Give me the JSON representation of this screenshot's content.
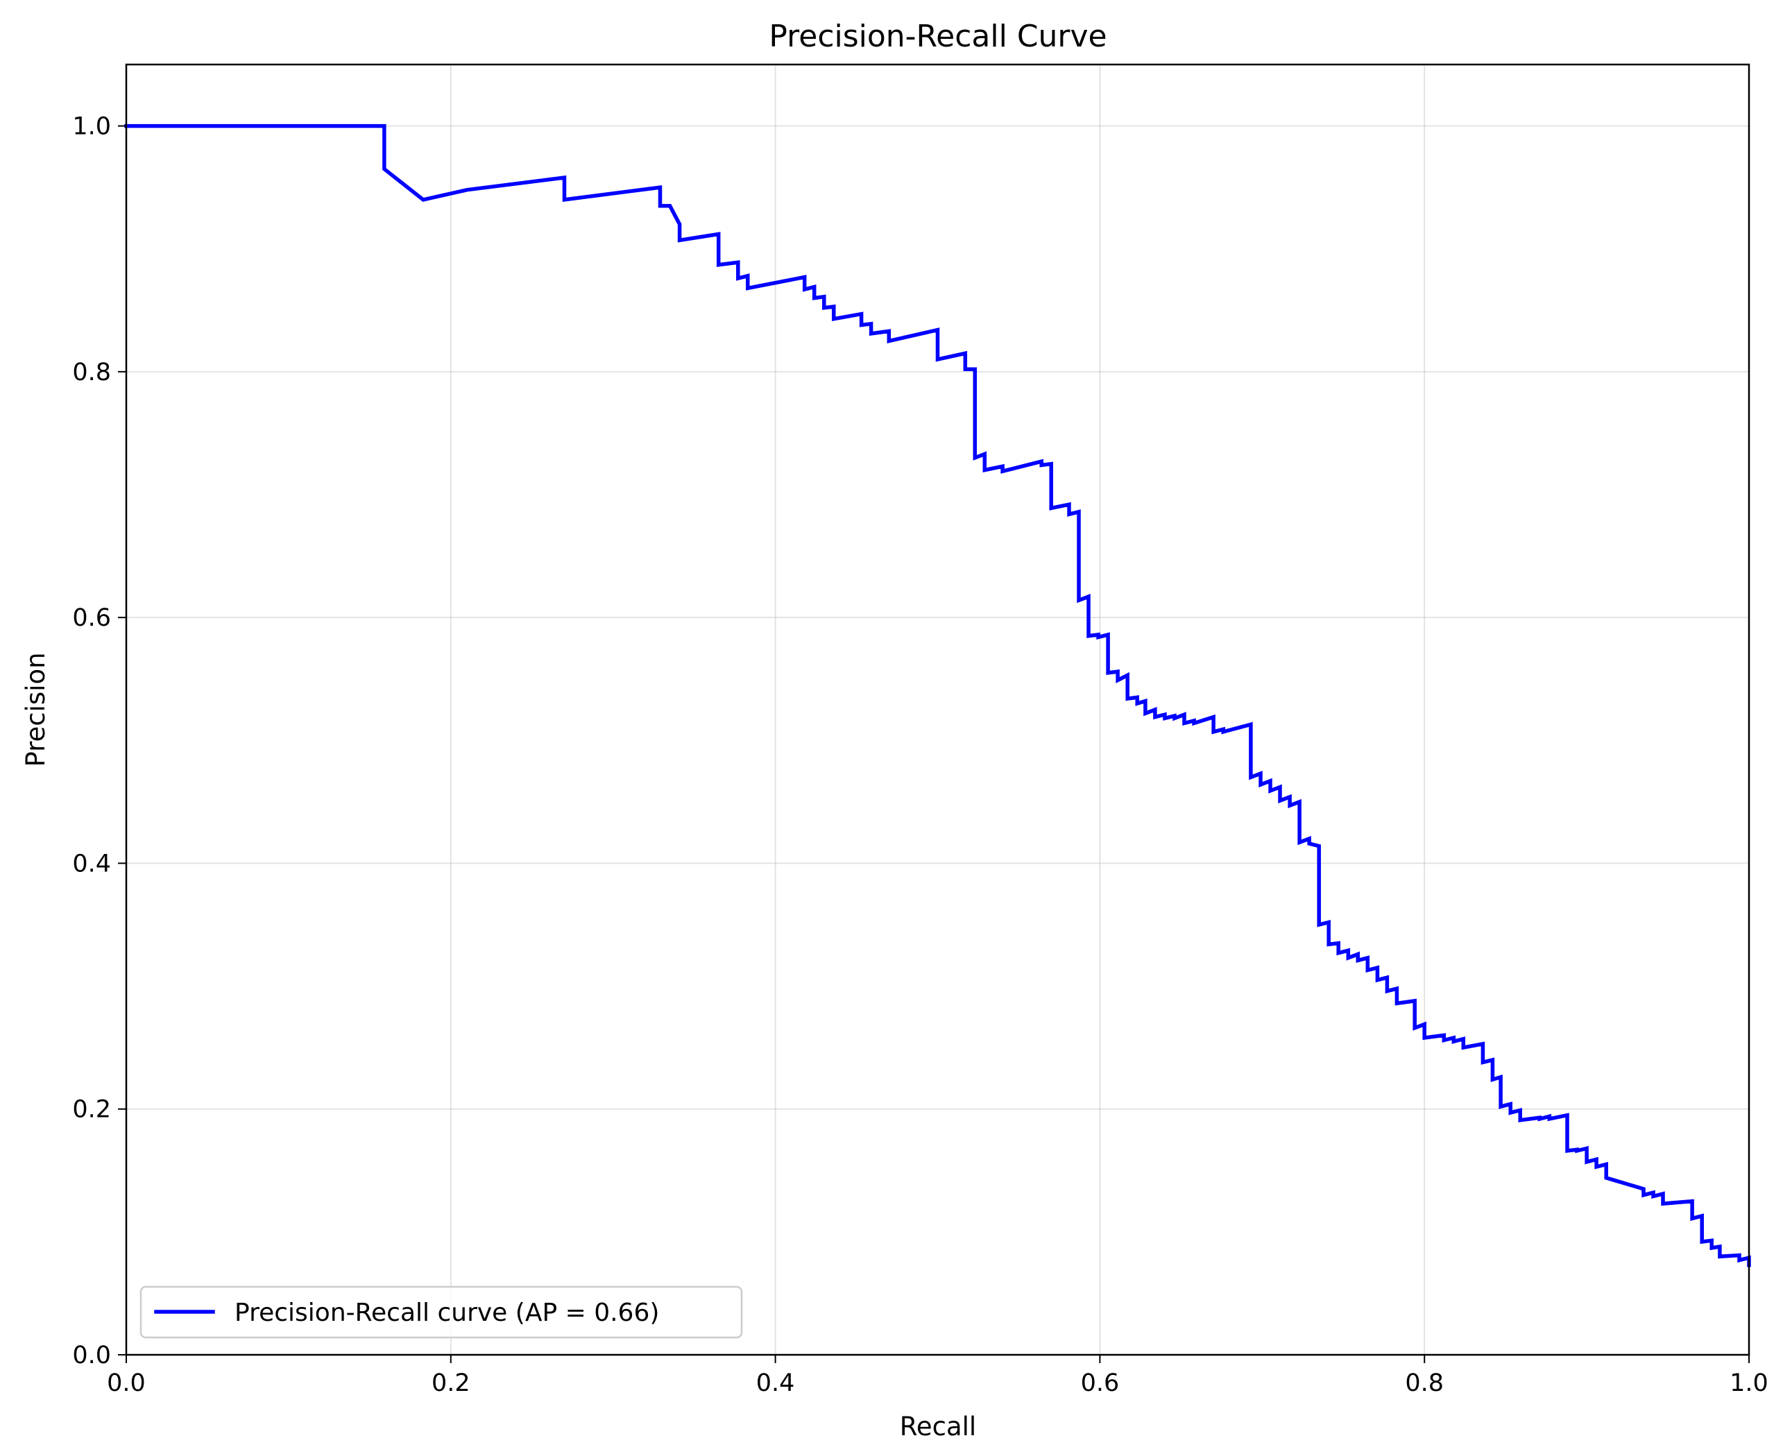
{
  "chart_data": {
    "type": "line",
    "title": "Precision-Recall Curve",
    "xlabel": "Recall",
    "ylabel": "Precision",
    "xlim": [
      0.0,
      1.0
    ],
    "ylim": [
      0.0,
      1.05
    ],
    "xticks": [
      0.0,
      0.2,
      0.4,
      0.6,
      0.8,
      1.0
    ],
    "yticks": [
      0.0,
      0.2,
      0.4,
      0.6,
      0.8,
      1.0
    ],
    "xtick_labels": [
      "0.0",
      "0.2",
      "0.4",
      "0.6",
      "0.8",
      "1.0"
    ],
    "ytick_labels": [
      "0.0",
      "0.2",
      "0.4",
      "0.6",
      "0.8",
      "1.0"
    ],
    "grid": true,
    "legend": {
      "placement": "lower-left"
    },
    "series": [
      {
        "name": "Precision-Recall curve (AP = 0.66)",
        "color": "#0000ff",
        "points": [
          [
            0.0,
            1.0
          ],
          [
            0.159,
            1.0
          ],
          [
            0.159,
            0.965
          ],
          [
            0.183,
            0.94
          ],
          [
            0.21,
            0.948
          ],
          [
            0.27,
            0.958
          ],
          [
            0.27,
            0.94
          ],
          [
            0.329,
            0.95
          ],
          [
            0.329,
            0.935
          ],
          [
            0.335,
            0.935
          ],
          [
            0.341,
            0.92
          ],
          [
            0.341,
            0.907
          ],
          [
            0.365,
            0.912
          ],
          [
            0.365,
            0.887
          ],
          [
            0.377,
            0.889
          ],
          [
            0.377,
            0.876
          ],
          [
            0.383,
            0.878
          ],
          [
            0.383,
            0.868
          ],
          [
            0.418,
            0.877
          ],
          [
            0.418,
            0.867
          ],
          [
            0.424,
            0.869
          ],
          [
            0.424,
            0.86
          ],
          [
            0.43,
            0.861
          ],
          [
            0.43,
            0.852
          ],
          [
            0.436,
            0.853
          ],
          [
            0.436,
            0.843
          ],
          [
            0.453,
            0.847
          ],
          [
            0.453,
            0.838
          ],
          [
            0.459,
            0.839
          ],
          [
            0.459,
            0.831
          ],
          [
            0.47,
            0.833
          ],
          [
            0.47,
            0.825
          ],
          [
            0.5,
            0.834
          ],
          [
            0.5,
            0.81
          ],
          [
            0.517,
            0.815
          ],
          [
            0.517,
            0.802
          ],
          [
            0.523,
            0.802
          ],
          [
            0.523,
            0.73
          ],
          [
            0.529,
            0.733
          ],
          [
            0.529,
            0.72
          ],
          [
            0.54,
            0.723
          ],
          [
            0.54,
            0.719
          ],
          [
            0.564,
            0.727
          ],
          [
            0.564,
            0.724
          ],
          [
            0.57,
            0.725
          ],
          [
            0.57,
            0.689
          ],
          [
            0.581,
            0.692
          ],
          [
            0.581,
            0.684
          ],
          [
            0.587,
            0.686
          ],
          [
            0.587,
            0.614
          ],
          [
            0.593,
            0.617
          ],
          [
            0.593,
            0.585
          ],
          [
            0.599,
            0.586
          ],
          [
            0.599,
            0.584
          ],
          [
            0.605,
            0.586
          ],
          [
            0.605,
            0.555
          ],
          [
            0.611,
            0.556
          ],
          [
            0.611,
            0.549
          ],
          [
            0.617,
            0.553
          ],
          [
            0.617,
            0.534
          ],
          [
            0.623,
            0.535
          ],
          [
            0.623,
            0.53
          ],
          [
            0.628,
            0.532
          ],
          [
            0.628,
            0.522
          ],
          [
            0.634,
            0.525
          ],
          [
            0.634,
            0.519
          ],
          [
            0.64,
            0.521
          ],
          [
            0.64,
            0.518
          ],
          [
            0.646,
            0.52
          ],
          [
            0.646,
            0.518
          ],
          [
            0.652,
            0.521
          ],
          [
            0.652,
            0.514
          ],
          [
            0.658,
            0.516
          ],
          [
            0.658,
            0.514
          ],
          [
            0.67,
            0.519
          ],
          [
            0.67,
            0.507
          ],
          [
            0.676,
            0.509
          ],
          [
            0.676,
            0.507
          ],
          [
            0.693,
            0.513
          ],
          [
            0.693,
            0.47
          ],
          [
            0.699,
            0.473
          ],
          [
            0.699,
            0.464
          ],
          [
            0.705,
            0.467
          ],
          [
            0.705,
            0.459
          ],
          [
            0.711,
            0.462
          ],
          [
            0.711,
            0.451
          ],
          [
            0.717,
            0.454
          ],
          [
            0.717,
            0.447
          ],
          [
            0.723,
            0.45
          ],
          [
            0.723,
            0.417
          ],
          [
            0.729,
            0.42
          ],
          [
            0.729,
            0.416
          ],
          [
            0.735,
            0.414
          ],
          [
            0.735,
            0.35
          ],
          [
            0.741,
            0.352
          ],
          [
            0.741,
            0.334
          ],
          [
            0.747,
            0.335
          ],
          [
            0.747,
            0.327
          ],
          [
            0.753,
            0.329
          ],
          [
            0.753,
            0.323
          ],
          [
            0.759,
            0.326
          ],
          [
            0.759,
            0.321
          ],
          [
            0.765,
            0.323
          ],
          [
            0.765,
            0.313
          ],
          [
            0.771,
            0.315
          ],
          [
            0.771,
            0.305
          ],
          [
            0.777,
            0.307
          ],
          [
            0.777,
            0.296
          ],
          [
            0.783,
            0.298
          ],
          [
            0.783,
            0.286
          ],
          [
            0.794,
            0.288
          ],
          [
            0.794,
            0.266
          ],
          [
            0.8,
            0.269
          ],
          [
            0.8,
            0.258
          ],
          [
            0.812,
            0.26
          ],
          [
            0.812,
            0.256
          ],
          [
            0.818,
            0.258
          ],
          [
            0.818,
            0.255
          ],
          [
            0.824,
            0.257
          ],
          [
            0.824,
            0.25
          ],
          [
            0.836,
            0.253
          ],
          [
            0.836,
            0.238
          ],
          [
            0.842,
            0.24
          ],
          [
            0.842,
            0.224
          ],
          [
            0.847,
            0.226
          ],
          [
            0.847,
            0.202
          ],
          [
            0.853,
            0.204
          ],
          [
            0.853,
            0.197
          ],
          [
            0.859,
            0.199
          ],
          [
            0.859,
            0.191
          ],
          [
            0.871,
            0.193
          ],
          [
            0.871,
            0.192
          ],
          [
            0.877,
            0.194
          ],
          [
            0.877,
            0.192
          ],
          [
            0.888,
            0.195
          ],
          [
            0.888,
            0.166
          ],
          [
            0.894,
            0.167
          ],
          [
            0.894,
            0.166
          ],
          [
            0.9,
            0.168
          ],
          [
            0.9,
            0.157
          ],
          [
            0.906,
            0.159
          ],
          [
            0.906,
            0.153
          ],
          [
            0.912,
            0.155
          ],
          [
            0.912,
            0.144
          ],
          [
            0.935,
            0.135
          ],
          [
            0.935,
            0.13
          ],
          [
            0.941,
            0.132
          ],
          [
            0.941,
            0.129
          ],
          [
            0.947,
            0.131
          ],
          [
            0.947,
            0.123
          ],
          [
            0.965,
            0.125
          ],
          [
            0.965,
            0.111
          ],
          [
            0.971,
            0.113
          ],
          [
            0.971,
            0.092
          ],
          [
            0.977,
            0.093
          ],
          [
            0.977,
            0.087
          ],
          [
            0.982,
            0.088
          ],
          [
            0.982,
            0.08
          ],
          [
            0.994,
            0.081
          ],
          [
            0.994,
            0.077
          ],
          [
            1.0,
            0.079
          ],
          [
            1.0,
            0.073
          ]
        ]
      }
    ]
  }
}
